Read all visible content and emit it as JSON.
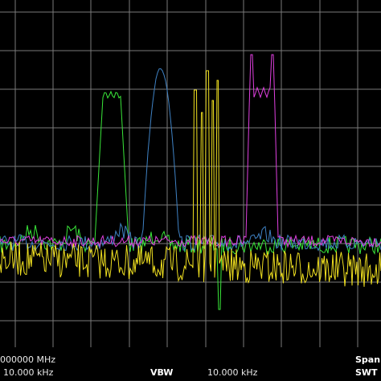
{
  "status": {
    "center_freq": "000000 MHz",
    "rbw_value": "10.000 kHz",
    "vbw_label": "VBW",
    "vbw_value": "10.000 kHz",
    "span_label": "Span",
    "swt_label": "SWT"
  },
  "colors": {
    "background": "#000000",
    "grid": "#7a7a7a",
    "trace_green": "#39e639",
    "trace_blue": "#3f82c4",
    "trace_yellow": "#f0e020",
    "trace_magenta": "#e040e0"
  },
  "display": {
    "grid_columns": 10,
    "grid_rows": 9,
    "trace_count": 4
  }
}
